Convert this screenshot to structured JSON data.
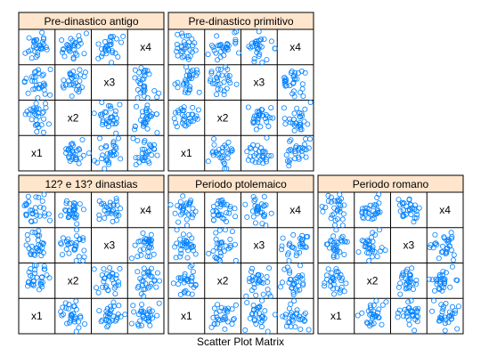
{
  "chart_data": {
    "type": "scatter",
    "kind": "scatter-plot-matrix-trellis",
    "title": "",
    "xlabel": "Scatter Plot Matrix",
    "ylabel": "",
    "variables": [
      "x1",
      "x2",
      "x3",
      "x4"
    ],
    "diagonal_labels_top_to_bottom": [
      "x4",
      "x3",
      "x2",
      "x1"
    ],
    "grid": false,
    "point_color": "#0080ff",
    "strip_color": "#ffe5cc",
    "panels": [
      {
        "name": "Pre-dinastico antigo"
      },
      {
        "name": "Pre-dinastico primitivo"
      },
      {
        "name": "12? e 13? dinastias"
      },
      {
        "name": "Periodo ptolemaico"
      },
      {
        "name": "Periodo romano"
      }
    ]
  }
}
